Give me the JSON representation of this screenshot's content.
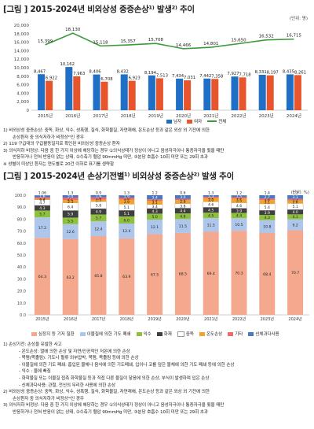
{
  "title1": "[그림 ] 2015-2024년 비외상성 중증손상¹⁾ 발생²⁾ 추이",
  "unit1": "(단위: 명)",
  "chart_data": [
    {
      "type": "bar",
      "categories": [
        "2015년",
        "2016년",
        "2017년",
        "2018년",
        "2019년",
        "2020년",
        "2021년",
        "2022년",
        "2023년",
        "2024년"
      ],
      "ylim": [
        0,
        20000
      ],
      "yticks": [
        "0",
        "2,000",
        "4,000",
        "6,000",
        "8,000",
        "10,000",
        "12,000",
        "14,000",
        "16,000",
        "18,000",
        "20,000"
      ],
      "series": [
        {
          "name": "남자",
          "color": "#1f6fc6",
          "values": [
            8467,
            10162,
            8406,
            8432,
            8194,
            7434,
            7442,
            7927,
            8331,
            8435
          ]
        },
        {
          "name": "여자",
          "color": "#e8552d",
          "values": [
            6922,
            7963,
            6708,
            6923,
            7513,
            7031,
            7358,
            7718,
            8197,
            8261
          ]
        },
        {
          "name": "전체",
          "type": "line",
          "color": "#3b9a3b",
          "values": [
            15399,
            18130,
            15118,
            15357,
            15708,
            14466,
            14801,
            15650,
            16532,
            16715
          ]
        }
      ],
      "value_labels": {
        "male": [
          "8,467",
          "10,162",
          "8,406",
          "8,432",
          "8,194",
          "7,434",
          "7,442",
          "7,927",
          "8,331",
          "8,435"
        ],
        "female": [
          "6,922",
          "7,963",
          "6,708",
          "6,923",
          "7,513",
          "7,031",
          "7,358",
          "7,718",
          "8,197",
          "8,261"
        ],
        "total": [
          "15,399",
          "18,130",
          "15,118",
          "15,357",
          "15,708",
          "14,466",
          "14,801",
          "15,650",
          "16,532",
          "16,715"
        ]
      },
      "legend": [
        "남자",
        "여자",
        "전체"
      ]
    },
    {
      "type": "bar",
      "stacked": true,
      "categories": [
        "2015년",
        "2016년",
        "2017년",
        "2018년",
        "2019년",
        "2020년",
        "2021년",
        "2022년",
        "2023년",
        "2024년"
      ],
      "ylim": [
        0,
        100
      ],
      "yticks": [
        "0.0",
        "10.0",
        "20.0",
        "30.0",
        "40.0",
        "50.0",
        "60.0",
        "70.0",
        "80.0",
        "90.0",
        "100.0"
      ],
      "series": [
        {
          "name": "심정지 등 기저 질환",
          "color": "#f4a98e",
          "values": [
            64.3,
            63.2,
            65.8,
            63.9,
            67.5,
            68.5,
            69.4,
            70.3,
            68.4,
            70.7
          ]
        },
        {
          "name": "이물질에 의한 기도 폐쇄",
          "color": "#adc6ea",
          "values": [
            17.2,
            12.6,
            12.4,
            12.4,
            12.1,
            11.5,
            11.5,
            10.5,
            10.8,
            9.2
          ]
        },
        {
          "name": "익수",
          "color": "#8fbf3f",
          "values": [
            5.7,
            5.5,
            5.7,
            6.0,
            5.0,
            4.8,
            4.5,
            4.4,
            4.3,
            4.1
          ]
        },
        {
          "name": "화재",
          "color": "#3f3f3f",
          "values": [
            4.3,
            5.9,
            4.9,
            5.1,
            4.3,
            4.4,
            4.5,
            3.9,
            3.9,
            4.0
          ]
        },
        {
          "name": "중독",
          "color": "#ffffff",
          "values": [
            4.7,
            6.4,
            5.8,
            5.1,
            3.4,
            3.8,
            4.6,
            4.6,
            5.4,
            5.1
          ]
        },
        {
          "name": "온도손상",
          "color": "#f2a12a",
          "values": [
            0.8,
            2.3,
            1.7,
            3.9,
            3.1,
            2.9,
            3.0,
            3.5,
            3.1,
            2.6
          ]
        },
        {
          "name": "기타",
          "color": "#ef6a6a",
          "values": [
            1.3,
            2.1,
            1.9,
            1.6,
            1.2,
            1.1,
            1.2,
            1.2,
            1.4,
            1.2
          ]
        },
        {
          "name": "신체과다사용",
          "color": "#4a78c2",
          "values": [
            1.6,
            2.0,
            1.9,
            1.9,
            3.4,
            3.0,
            1.3,
            1.5,
            2.7,
            3.1
          ]
        }
      ],
      "top_labels": [
        "1.06",
        "1.3",
        "0.9",
        "1.3",
        "1.2",
        "0.6",
        "1.3",
        "1.2",
        "1.4",
        "1.2"
      ],
      "legend": [
        "심정지 등 기저 질환",
        "이물질에 의한 기도 폐쇄",
        "익수",
        "화재",
        "중독",
        "온도손상",
        "기타",
        "신체과다사용"
      ]
    }
  ],
  "title2": "[그림 ] 2015-2024년 손상기전별¹⁾ 비외상성 중증손상²⁾ 발생 추이",
  "unit2": "(단위: %)",
  "notes1": [
    "1) 비외상성 중증손상: 중독, 화상, 익수, 성폭행, 질식, 화학물질, 자연재해, 온도손상 등과 같은 외상 외 기전에 의한",
    "   손상환자 중 의식저하가 비정상²⁾인 경우",
    "2) 119 구급대의 구급활동일지로 확인된 비외상성 중증손상 환자",
    "3) 의식저하 비정상: 다음 중 한 가지 이상에 해당하는 경우 ①의식상태가 정상이 아니고 음성자극이나 통증자극을 줬을 때만",
    "   반응하거나 전혀 반응이 없는 상태, ②수축기 혈압 90mmHg 미만, ③분당 호흡수 10회 미만 또는 29회 초과",
    "※ 성별이 미상인 환자는 연도별로 20건 이하로 표기를 생략함"
  ],
  "notes2": [
    "1) 손상기전: 손상을 유발한 사고",
    "- 온도손상: 열에 의한 손상 및 자연/인공적인 저온에 의한 손상",
    "- 목맴(목졸림): 기도나 혈류 외부압박, 목맴, 목졸림 등에 의한 손상",
    "- 이물질에 의한 기도 폐쇄: 흡입된 물체나 음식에 의한 기도폐쇄, 입이나 코를 덮은 물체에 의한 기도 폐쇄 등에 의한 손상",
    "- 익수 : 물에 빠짐",
    "- 화학물질 또는 이물질 접촉 화학물질 등과 직접 다른 물질이 닿음에 의한 손상, 부식이 발생하며 입은 손상",
    "- 신체과다사용: 관절, 전신의 무리한 사용에 의한 손상",
    "2) 비외상성 중증손상: 중독, 화상, 익수, 성폭행, 질식, 화학물질, 자연재해, 온도손상 등과 같은 외상 외 기전에 의한",
    "   손상환자 중 의식저하가 비정상³⁾인 경우",
    "3) 의식저하 비정상: 다음 중 한 가지 이상에 해당하는 경우 ①의식상태가 정상이 아니고 음성자극이나 통증자극을 줬을 때만",
    "   반응하거나 전혀 반응이 없는 상태, ②수축기 혈압 90mmHg 미만, ③분당 호흡수 10회 미만 또는 29회 초과"
  ]
}
